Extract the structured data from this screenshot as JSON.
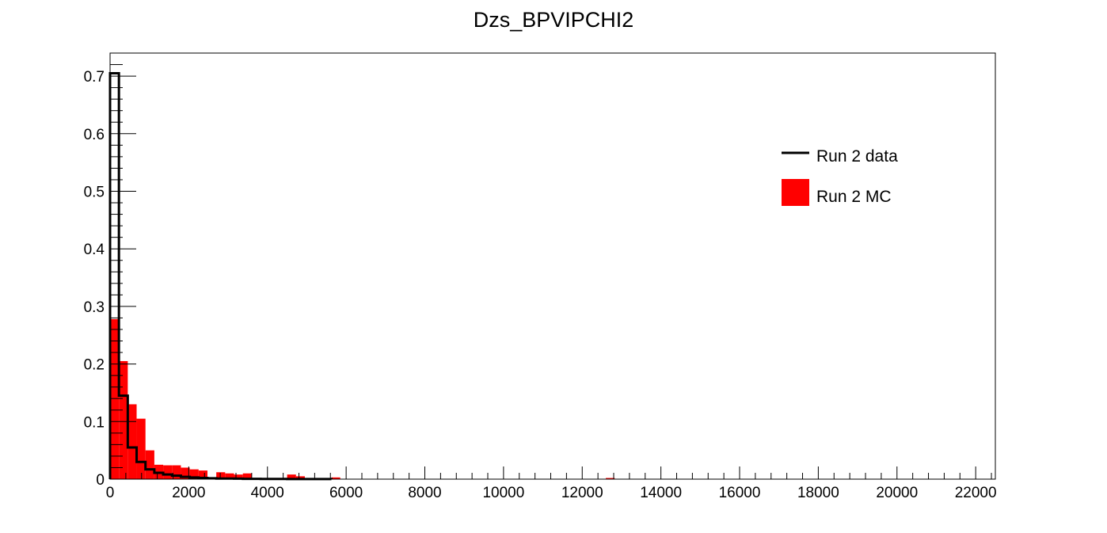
{
  "chart_data": {
    "type": "bar",
    "title": "Dzs_BPVIPCHI2",
    "xlabel": "",
    "ylabel": "",
    "xlim": [
      0,
      22500
    ],
    "ylim": [
      0,
      0.74
    ],
    "x_ticks": [
      0,
      2000,
      4000,
      6000,
      8000,
      10000,
      12000,
      14000,
      16000,
      18000,
      20000,
      22000
    ],
    "x_tick_labels": [
      "0",
      "2000",
      "4000",
      "6000",
      "8000",
      "10000",
      "12000",
      "14000",
      "16000",
      "18000",
      "20000",
      "22000"
    ],
    "y_ticks": [
      0,
      0.1,
      0.2,
      0.3,
      0.4,
      0.5,
      0.6,
      0.7
    ],
    "y_tick_labels": [
      "0",
      "0.1",
      "0.2",
      "0.3",
      "0.4",
      "0.5",
      "0.6",
      "0.7"
    ],
    "bin_width": 225,
    "legend_position": "top-right",
    "grid": false,
    "series": [
      {
        "name": "Run 2 data",
        "style": "step",
        "color": "#000000",
        "values": [
          0.705,
          0.145,
          0.055,
          0.03,
          0.017,
          0.011,
          0.008,
          0.006,
          0.004,
          0.003,
          0.002,
          0.0015,
          0.001,
          0.001,
          0.0008,
          0.0006,
          0.0005,
          0.0004,
          0.0003,
          0.0003,
          0.0002,
          0.0002,
          0.0002,
          0.0001,
          0.0001
        ]
      },
      {
        "name": "Run 2 MC",
        "style": "filled",
        "color": "#ff0000",
        "values": [
          0.278,
          0.205,
          0.13,
          0.105,
          0.05,
          0.025,
          0.024,
          0.024,
          0.02,
          0.017,
          0.015,
          0.003,
          0.012,
          0.01,
          0.008,
          0.01,
          0,
          0,
          0,
          0.001,
          0.008,
          0.005,
          0,
          0,
          0.001,
          0.003,
          0,
          0,
          0,
          0,
          0,
          0,
          0,
          0,
          0,
          0,
          0,
          0,
          0,
          0,
          0,
          0,
          0,
          0,
          0,
          0,
          0,
          0,
          0,
          0,
          0,
          0,
          0,
          0,
          0,
          0,
          0.002
        ]
      }
    ]
  }
}
